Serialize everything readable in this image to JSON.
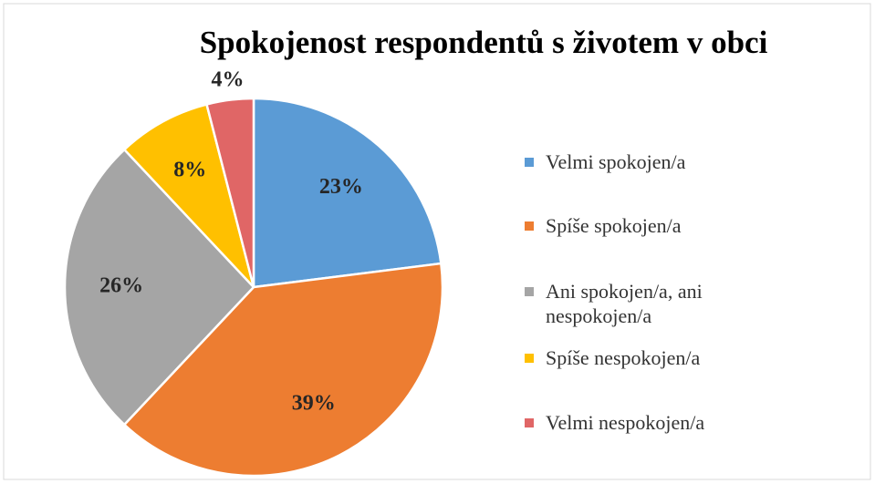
{
  "chart_data": {
    "type": "pie",
    "title": "Spokojenost respondentů s životem v obci",
    "categories": [
      "Velmi spokojen/a",
      "Spíše spokojen/a",
      "Ani spokojen/a, ani nespokojen/a",
      "Spíše nespokojen/a",
      "Velmi nespokojen/a"
    ],
    "values": [
      23,
      39,
      26,
      8,
      4
    ],
    "value_labels": [
      "23%",
      "39%",
      "26%",
      "8%",
      "4%"
    ],
    "colors": [
      "#5b9bd5",
      "#ed7d31",
      "#a5a5a5",
      "#ffc000",
      "#e06666"
    ],
    "legend": "right"
  }
}
